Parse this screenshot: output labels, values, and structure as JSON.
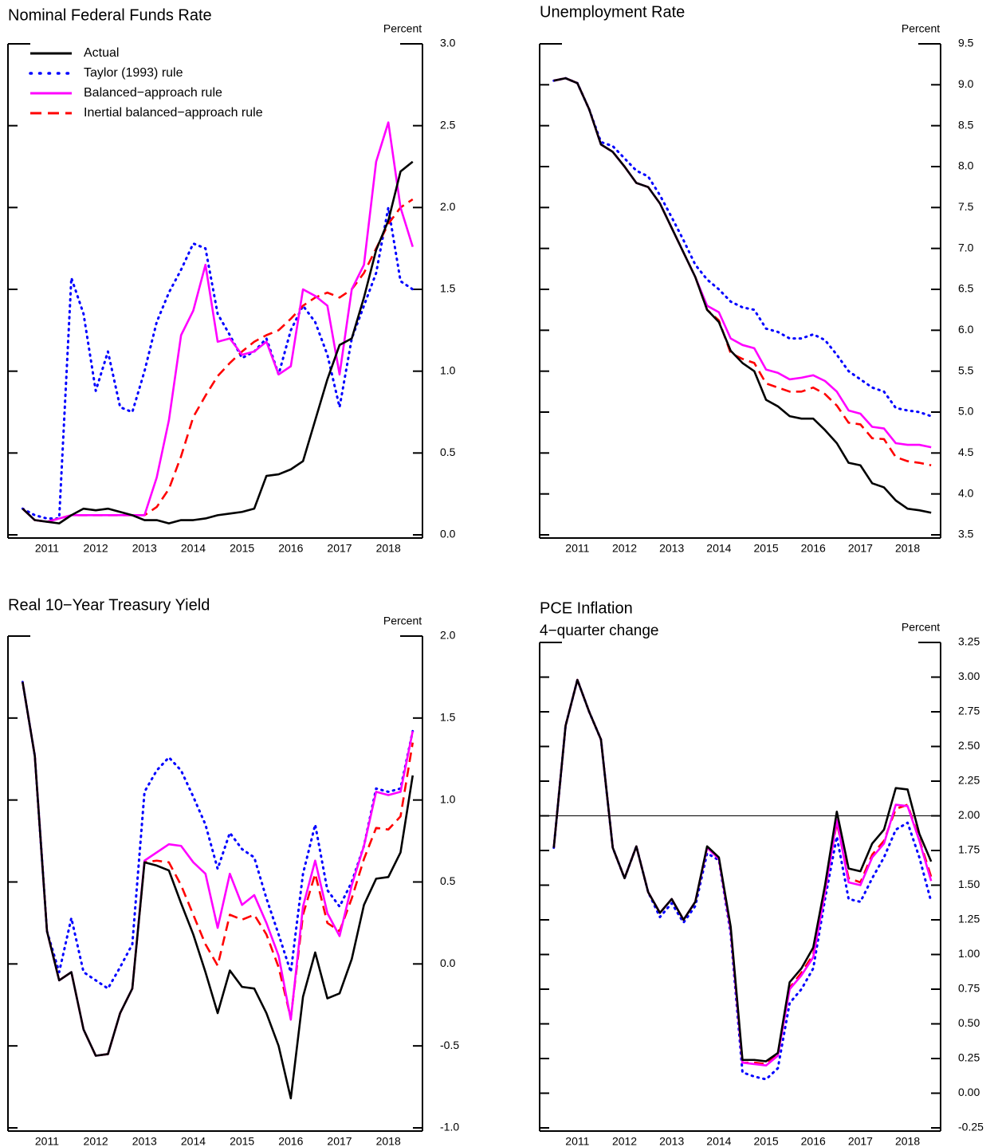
{
  "chart_data": [
    {
      "type": "line",
      "title": "Nominal Federal Funds Rate",
      "y_unit": "Percent",
      "x": [
        2011,
        2011.25,
        2011.5,
        2011.75,
        2012,
        2012.25,
        2012.5,
        2012.75,
        2013,
        2013.25,
        2013.5,
        2013.75,
        2014,
        2014.25,
        2014.5,
        2014.75,
        2015,
        2015.25,
        2015.5,
        2015.75,
        2016,
        2016.25,
        2016.5,
        2016.75,
        2017,
        2017.25,
        2017.5,
        2017.75,
        2018,
        2018.25,
        2018.5,
        2018.75,
        2019
      ],
      "xlim": [
        2010.7,
        2019.2
      ],
      "xticks": [
        {
          "value": 2011.5,
          "label": "2011"
        },
        {
          "value": 2012.5,
          "label": "2012"
        },
        {
          "value": 2013.5,
          "label": "2013"
        },
        {
          "value": 2014.5,
          "label": "2014"
        },
        {
          "value": 2015.5,
          "label": "2015"
        },
        {
          "value": 2016.5,
          "label": "2016"
        },
        {
          "value": 2017.5,
          "label": "2017"
        },
        {
          "value": 2018.5,
          "label": "2018"
        }
      ],
      "ylim": [
        0,
        3
      ],
      "yticks": [
        {
          "value": 0,
          "label": "0.0"
        },
        0.5,
        {
          "value": 1,
          "label": "1.0"
        },
        1.5,
        {
          "value": 2,
          "label": "2.0"
        },
        2.5,
        {
          "value": 3,
          "label": "3.0"
        }
      ],
      "legend": "upper left",
      "series": [
        {
          "name": "Actual",
          "color": "#000000",
          "style": "solid",
          "values": [
            0.16,
            0.09,
            0.08,
            0.07,
            0.12,
            0.16,
            0.15,
            0.16,
            0.14,
            0.12,
            0.09,
            0.09,
            0.07,
            0.09,
            0.09,
            0.1,
            0.12,
            0.13,
            0.14,
            0.16,
            0.36,
            0.37,
            0.4,
            0.45,
            0.7,
            0.95,
            1.16,
            1.2,
            1.45,
            1.74,
            1.92,
            2.22,
            2.28
          ]
        },
        {
          "name": "Taylor (1993) rule",
          "color": "#0000ff",
          "style": "dotted",
          "values": [
            0.16,
            0.12,
            0.1,
            0.1,
            1.57,
            1.35,
            0.88,
            1.12,
            0.78,
            0.75,
            1.0,
            1.3,
            1.48,
            1.62,
            1.78,
            1.75,
            1.35,
            1.22,
            1.08,
            1.12,
            1.2,
            0.98,
            1.25,
            1.4,
            1.3,
            1.1,
            0.78,
            1.2,
            1.4,
            1.6,
            2.0,
            1.55,
            1.5
          ]
        },
        {
          "name": "Balanced−approach rule",
          "color": "#ff00ff",
          "style": "solid",
          "values": [
            0.16,
            0.09,
            0.08,
            0.1,
            0.12,
            0.12,
            0.12,
            0.12,
            0.12,
            0.12,
            0.12,
            0.35,
            0.7,
            1.22,
            1.37,
            1.65,
            1.18,
            1.2,
            1.1,
            1.12,
            1.18,
            0.98,
            1.03,
            1.5,
            1.46,
            1.4,
            0.98,
            1.5,
            1.65,
            2.28,
            2.52,
            2.0,
            1.76
          ]
        },
        {
          "name": "Inertial balanced−approach rule",
          "color": "#ff0000",
          "style": "dashed",
          "values": [
            0.16,
            0.09,
            0.08,
            0.1,
            0.12,
            0.12,
            0.12,
            0.12,
            0.12,
            0.12,
            0.12,
            0.17,
            0.28,
            0.48,
            0.72,
            0.85,
            0.97,
            1.05,
            1.12,
            1.18,
            1.22,
            1.25,
            1.32,
            1.4,
            1.45,
            1.48,
            1.45,
            1.5,
            1.6,
            1.75,
            1.9,
            2.0,
            2.05
          ]
        }
      ]
    },
    {
      "type": "line",
      "title": "Unemployment Rate",
      "y_unit": "Percent",
      "x": [
        2011,
        2011.25,
        2011.5,
        2011.75,
        2012,
        2012.25,
        2012.5,
        2012.75,
        2013,
        2013.25,
        2013.5,
        2013.75,
        2014,
        2014.25,
        2014.5,
        2014.75,
        2015,
        2015.25,
        2015.5,
        2015.75,
        2016,
        2016.25,
        2016.5,
        2016.75,
        2017,
        2017.25,
        2017.5,
        2017.75,
        2018,
        2018.25,
        2018.5,
        2018.75,
        2019
      ],
      "xlim": [
        2010.7,
        2019.2
      ],
      "xticks": [
        {
          "value": 2011.5,
          "label": "2011"
        },
        {
          "value": 2012.5,
          "label": "2012"
        },
        {
          "value": 2013.5,
          "label": "2013"
        },
        {
          "value": 2014.5,
          "label": "2014"
        },
        {
          "value": 2015.5,
          "label": "2015"
        },
        {
          "value": 2016.5,
          "label": "2016"
        },
        {
          "value": 2017.5,
          "label": "2017"
        },
        {
          "value": 2018.5,
          "label": "2018"
        }
      ],
      "ylim": [
        3.5,
        9.5
      ],
      "yticks": [
        3.5,
        {
          "value": 4,
          "label": "4.0"
        },
        4.5,
        {
          "value": 5,
          "label": "5.0"
        },
        5.5,
        {
          "value": 6,
          "label": "6.0"
        },
        6.5,
        {
          "value": 7,
          "label": "7.0"
        },
        7.5,
        {
          "value": 8,
          "label": "8.0"
        },
        8.5,
        {
          "value": 9,
          "label": "9.0"
        },
        9.5
      ],
      "series": [
        {
          "name": "Actual",
          "color": "#000000",
          "style": "solid",
          "values": [
            9.05,
            9.08,
            9.02,
            8.7,
            8.27,
            8.18,
            8.0,
            7.8,
            7.75,
            7.55,
            7.25,
            6.95,
            6.65,
            6.25,
            6.1,
            5.75,
            5.6,
            5.5,
            5.15,
            5.07,
            4.95,
            4.92,
            4.92,
            4.78,
            4.62,
            4.38,
            4.35,
            4.13,
            4.08,
            3.92,
            3.82,
            3.8,
            3.77
          ]
        },
        {
          "name": "Taylor (1993) rule",
          "color": "#0000ff",
          "style": "dotted",
          "values": [
            9.05,
            9.08,
            9.02,
            8.7,
            8.3,
            8.25,
            8.1,
            7.95,
            7.88,
            7.65,
            7.38,
            7.1,
            6.8,
            6.62,
            6.5,
            6.35,
            6.28,
            6.25,
            6.02,
            5.98,
            5.9,
            5.9,
            5.95,
            5.88,
            5.7,
            5.5,
            5.4,
            5.3,
            5.25,
            5.05,
            5.02,
            5.0,
            4.95
          ]
        },
        {
          "name": "Balanced−approach rule",
          "color": "#ff00ff",
          "style": "solid",
          "values": [
            9.05,
            9.08,
            9.02,
            8.7,
            8.27,
            8.18,
            8.0,
            7.8,
            7.75,
            7.55,
            7.25,
            6.95,
            6.65,
            6.3,
            6.22,
            5.9,
            5.82,
            5.78,
            5.52,
            5.48,
            5.4,
            5.42,
            5.45,
            5.38,
            5.25,
            5.02,
            4.98,
            4.82,
            4.8,
            4.62,
            4.6,
            4.6,
            4.57
          ]
        },
        {
          "name": "Inertial balanced−approach rule",
          "color": "#ff0000",
          "style": "dashed",
          "values": [
            9.05,
            9.08,
            9.02,
            8.7,
            8.27,
            8.18,
            8.0,
            7.8,
            7.75,
            7.55,
            7.25,
            6.95,
            6.65,
            6.25,
            6.12,
            5.72,
            5.65,
            5.6,
            5.35,
            5.3,
            5.25,
            5.25,
            5.3,
            5.22,
            5.08,
            4.87,
            4.85,
            4.68,
            4.67,
            4.45,
            4.4,
            4.38,
            4.35
          ]
        }
      ]
    },
    {
      "type": "line",
      "title": "Real 10−Year Treasury Yield",
      "y_unit": "Percent",
      "x": [
        2011,
        2011.25,
        2011.5,
        2011.75,
        2012,
        2012.25,
        2012.5,
        2012.75,
        2013,
        2013.25,
        2013.5,
        2013.75,
        2014,
        2014.25,
        2014.5,
        2014.75,
        2015,
        2015.25,
        2015.5,
        2015.75,
        2016,
        2016.25,
        2016.5,
        2016.75,
        2017,
        2017.25,
        2017.5,
        2017.75,
        2018,
        2018.25,
        2018.5,
        2018.75,
        2019
      ],
      "xlim": [
        2010.7,
        2019.2
      ],
      "xticks": [
        {
          "value": 2011.5,
          "label": "2011"
        },
        {
          "value": 2012.5,
          "label": "2012"
        },
        {
          "value": 2013.5,
          "label": "2013"
        },
        {
          "value": 2014.5,
          "label": "2014"
        },
        {
          "value": 2015.5,
          "label": "2015"
        },
        {
          "value": 2016.5,
          "label": "2016"
        },
        {
          "value": 2017.5,
          "label": "2017"
        },
        {
          "value": 2018.5,
          "label": "2018"
        }
      ],
      "ylim": [
        -1,
        2
      ],
      "yticks": [
        {
          "value": -1,
          "label": "-1.0"
        },
        -0.5,
        {
          "value": 0,
          "label": "0.0"
        },
        0.5,
        {
          "value": 1,
          "label": "1.0"
        },
        1.5,
        {
          "value": 2,
          "label": "2.0"
        }
      ],
      "series": [
        {
          "name": "Actual",
          "color": "#000000",
          "style": "solid",
          "values": [
            1.72,
            1.27,
            0.2,
            -0.1,
            -0.05,
            -0.4,
            -0.56,
            -0.55,
            -0.3,
            -0.15,
            0.62,
            0.6,
            0.57,
            0.37,
            0.18,
            -0.05,
            -0.3,
            -0.04,
            -0.14,
            -0.15,
            -0.3,
            -0.5,
            -0.82,
            -0.2,
            0.07,
            -0.21,
            -0.18,
            0.03,
            0.36,
            0.52,
            0.53,
            0.68,
            1.15
          ]
        },
        {
          "name": "Taylor (1993) rule",
          "color": "#0000ff",
          "style": "dotted",
          "values": [
            1.72,
            1.27,
            0.2,
            -0.05,
            0.28,
            -0.05,
            -0.1,
            -0.15,
            -0.02,
            0.12,
            1.05,
            1.18,
            1.26,
            1.18,
            1.02,
            0.85,
            0.58,
            0.8,
            0.7,
            0.65,
            0.4,
            0.18,
            -0.05,
            0.55,
            0.85,
            0.45,
            0.35,
            0.5,
            0.72,
            1.07,
            1.05,
            1.07,
            1.42
          ]
        },
        {
          "name": "Balanced−approach rule",
          "color": "#ff00ff",
          "style": "solid",
          "values": [
            1.72,
            1.27,
            0.2,
            -0.1,
            -0.05,
            -0.4,
            -0.56,
            -0.55,
            -0.3,
            -0.15,
            0.63,
            0.68,
            0.73,
            0.72,
            0.62,
            0.55,
            0.22,
            0.55,
            0.36,
            0.42,
            0.25,
            0.05,
            -0.34,
            0.35,
            0.63,
            0.31,
            0.17,
            0.48,
            0.72,
            1.05,
            1.03,
            1.05,
            1.42
          ]
        },
        {
          "name": "Inertial balanced−approach rule",
          "color": "#ff0000",
          "style": "dashed",
          "values": [
            1.72,
            1.27,
            0.2,
            -0.1,
            -0.05,
            -0.4,
            -0.56,
            -0.55,
            -0.3,
            -0.15,
            0.62,
            0.63,
            0.62,
            0.48,
            0.3,
            0.12,
            -0.01,
            0.3,
            0.27,
            0.3,
            0.18,
            -0.02,
            -0.33,
            0.3,
            0.55,
            0.25,
            0.2,
            0.4,
            0.64,
            0.83,
            0.82,
            0.9,
            1.35
          ]
        }
      ]
    },
    {
      "type": "line",
      "title": "PCE Inflation",
      "subtitle": "4−quarter change",
      "y_unit": "Percent",
      "x": [
        2011,
        2011.25,
        2011.5,
        2011.75,
        2012,
        2012.25,
        2012.5,
        2012.75,
        2013,
        2013.25,
        2013.5,
        2013.75,
        2014,
        2014.25,
        2014.5,
        2014.75,
        2015,
        2015.25,
        2015.5,
        2015.75,
        2016,
        2016.25,
        2016.5,
        2016.75,
        2017,
        2017.25,
        2017.5,
        2017.75,
        2018,
        2018.25,
        2018.5,
        2018.75,
        2019
      ],
      "xlim": [
        2010.7,
        2019.2
      ],
      "xticks": [
        {
          "value": 2011.5,
          "label": "2011"
        },
        {
          "value": 2012.5,
          "label": "2012"
        },
        {
          "value": 2013.5,
          "label": "2013"
        },
        {
          "value": 2014.5,
          "label": "2014"
        },
        {
          "value": 2015.5,
          "label": "2015"
        },
        {
          "value": 2016.5,
          "label": "2016"
        },
        {
          "value": 2017.5,
          "label": "2017"
        },
        {
          "value": 2018.5,
          "label": "2018"
        }
      ],
      "ylim": [
        -0.25,
        3.25
      ],
      "yticks": [
        -0.25,
        {
          "value": 0,
          "label": "0.00"
        },
        0.25,
        {
          "value": 0.5,
          "label": "0.50"
        },
        0.75,
        {
          "value": 1,
          "label": "1.00"
        },
        1.25,
        {
          "value": 1.5,
          "label": "1.50"
        },
        1.75,
        {
          "value": 2,
          "label": "2.00"
        },
        2.25,
        {
          "value": 2.5,
          "label": "2.50"
        },
        2.75,
        {
          "value": 3,
          "label": "3.00"
        },
        3.25
      ],
      "reference_line": 2,
      "series": [
        {
          "name": "Actual",
          "color": "#000000",
          "style": "solid",
          "values": [
            1.77,
            2.65,
            2.98,
            2.75,
            2.55,
            1.77,
            1.55,
            1.78,
            1.45,
            1.3,
            1.4,
            1.25,
            1.38,
            1.78,
            1.7,
            1.2,
            0.24,
            0.24,
            0.23,
            0.29,
            0.8,
            0.9,
            1.05,
            1.5,
            2.03,
            1.62,
            1.6,
            1.8,
            1.9,
            2.2,
            2.19,
            1.87,
            1.67
          ]
        },
        {
          "name": "Taylor (1993) rule",
          "color": "#0000ff",
          "style": "dotted",
          "values": [
            1.77,
            2.65,
            2.98,
            2.75,
            2.55,
            1.77,
            1.55,
            1.78,
            1.45,
            1.27,
            1.37,
            1.23,
            1.35,
            1.73,
            1.68,
            1.15,
            0.15,
            0.12,
            0.1,
            0.18,
            0.65,
            0.75,
            0.9,
            1.4,
            1.85,
            1.4,
            1.38,
            1.55,
            1.7,
            1.9,
            1.95,
            1.7,
            1.38
          ]
        },
        {
          "name": "Balanced−approach rule",
          "color": "#ff00ff",
          "style": "solid",
          "values": [
            1.77,
            2.65,
            2.98,
            2.75,
            2.55,
            1.77,
            1.55,
            1.78,
            1.45,
            1.3,
            1.4,
            1.25,
            1.38,
            1.77,
            1.69,
            1.18,
            0.22,
            0.21,
            0.2,
            0.27,
            0.75,
            0.85,
            0.98,
            1.45,
            1.97,
            1.52,
            1.5,
            1.7,
            1.8,
            2.08,
            2.07,
            1.82,
            1.53
          ]
        },
        {
          "name": "Inertial balanced−approach rule",
          "color": "#ff0000",
          "style": "dashed",
          "values": [
            1.77,
            2.65,
            2.98,
            2.75,
            2.55,
            1.77,
            1.55,
            1.78,
            1.45,
            1.3,
            1.4,
            1.25,
            1.38,
            1.77,
            1.69,
            1.18,
            0.22,
            0.22,
            0.21,
            0.28,
            0.76,
            0.87,
            1.0,
            1.47,
            1.95,
            1.55,
            1.52,
            1.72,
            1.82,
            2.05,
            2.08,
            1.83,
            1.56
          ]
        }
      ]
    }
  ]
}
